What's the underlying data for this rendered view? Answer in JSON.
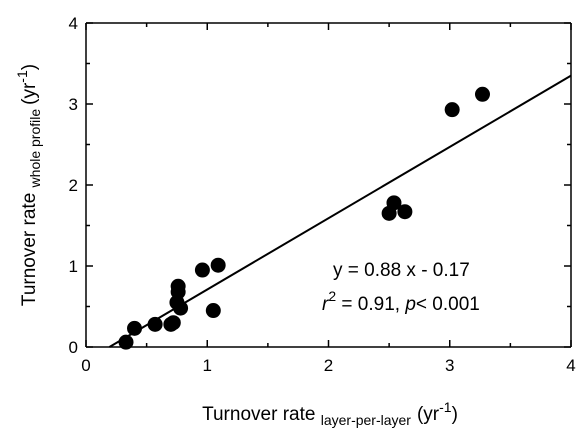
{
  "chart_data": {
    "type": "scatter",
    "title": "",
    "xlabel": {
      "main": "Turnover rate",
      "subscript": "layer-per-layer",
      "unit_base": "(yr",
      "unit_sup": "-1",
      "unit_close": ")"
    },
    "ylabel": {
      "main": "Turnover rate",
      "subscript": "whole profile",
      "unit_base": "(yr",
      "unit_sup": "-1",
      "unit_close": ")"
    },
    "xlim": [
      0,
      4
    ],
    "ylim": [
      0,
      4
    ],
    "xticks": [
      "0",
      "1",
      "2",
      "3",
      "4"
    ],
    "yticks": [
      "0",
      "1",
      "2",
      "3",
      "4"
    ],
    "grid": false,
    "legend": "none",
    "marker_color": "#000000",
    "x": [
      0.33,
      0.4,
      0.57,
      0.7,
      0.72,
      0.75,
      0.76,
      0.76,
      0.78,
      0.96,
      1.05,
      1.09,
      2.5,
      2.54,
      2.63,
      3.02,
      3.27
    ],
    "y": [
      0.06,
      0.23,
      0.28,
      0.28,
      0.3,
      0.55,
      0.68,
      0.75,
      0.48,
      0.95,
      0.45,
      1.01,
      1.65,
      1.78,
      1.67,
      2.93,
      3.12
    ],
    "fit": {
      "slope": 0.88,
      "intercept": -0.17
    },
    "annotations": {
      "equation": "y = 0.88 x - 0.17",
      "r_symbol": "r",
      "r_sup": "2",
      "r_rest": " = 0.91, ",
      "p_symbol": "p",
      "p_rest": "< 0.001"
    }
  }
}
